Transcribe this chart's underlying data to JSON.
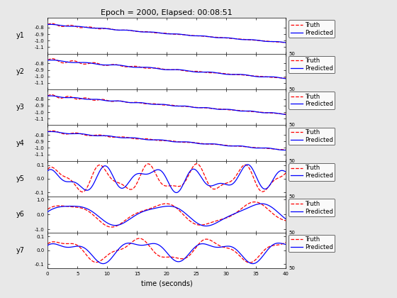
{
  "title": "Epoch = 2000, Elapsed: 00:08:51",
  "xlabel": "time (seconds)",
  "ylabels": [
    "y1",
    "y2",
    "y3",
    "y4",
    "y5",
    "y6",
    "y7"
  ],
  "xmax": 50,
  "n_axes": 7,
  "truth_color": "#FF0000",
  "pred_color": "#0000FF",
  "bg_color": "#E8E8E8",
  "plot_bg": "#FFFFFF",
  "legend_labels": [
    "Truth",
    "Predicted"
  ],
  "xticks": [
    0,
    5,
    10,
    15,
    20,
    25,
    30,
    35,
    40
  ],
  "xlim": [
    0,
    40
  ]
}
